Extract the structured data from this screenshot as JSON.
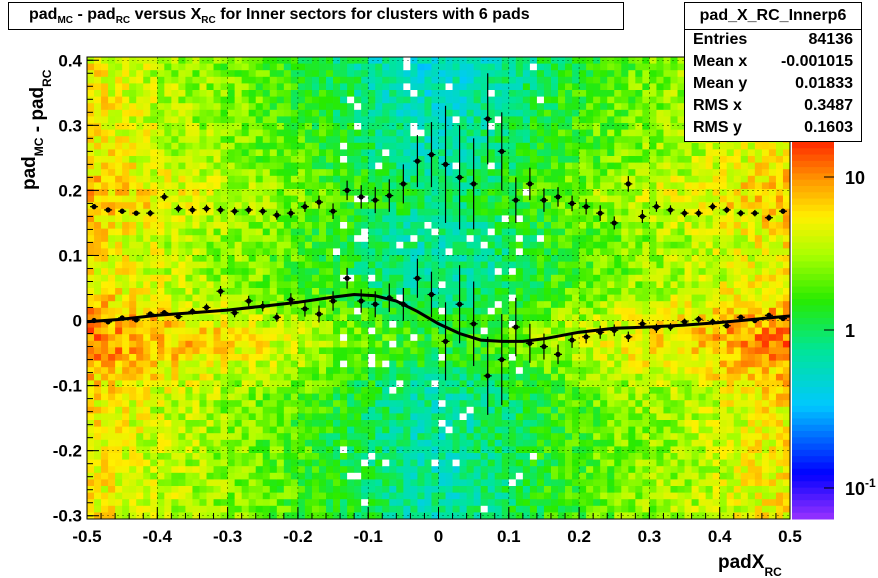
{
  "chart_data": {
    "type": "heatmap",
    "title": "pad_MC - pad_RC versus X_RC for Inner sectors for clusters with 6 pads",
    "title_parts": [
      {
        "t": "pad",
        "sub": "MC"
      },
      {
        "t": " - pad",
        "sub": "RC"
      },
      {
        "t": " versus X",
        "sub": "RC"
      },
      {
        "t": " for Inner sectors for clusters with 6 pads",
        "sub": ""
      }
    ],
    "xlabel": "padX",
    "xlabel_sub": "RC",
    "ylabel_parts": [
      {
        "t": "pad",
        "sub": "MC"
      },
      {
        "t": " - pad",
        "sub": "RC"
      }
    ],
    "xlim": [
      -0.5,
      0.5
    ],
    "ylim": [
      -0.305,
      0.405
    ],
    "x_ticks": [
      "-0.5",
      "-0.4",
      "-0.3",
      "-0.2",
      "-0.1",
      "0",
      "0.1",
      "0.2",
      "0.3",
      "0.4",
      "0.5"
    ],
    "y_ticks": [
      "-0.3",
      "-0.2",
      "-0.1",
      "0",
      "0.1",
      "0.2",
      "0.3",
      "0.4"
    ],
    "grid": true,
    "z_scale": "log",
    "z_ticks": [
      "10",
      "1",
      "10^-1"
    ],
    "stats": {
      "name": "pad_X_RC_Innerp6",
      "rows": [
        {
          "key": "Entries",
          "value": "84136"
        },
        {
          "key": "Mean x",
          "value": "-0.001015"
        },
        {
          "key": "Mean y",
          "value": "0.01833"
        },
        {
          "key": "RMS x",
          "value": "0.3487"
        },
        {
          "key": "RMS y",
          "value": "0.1603"
        }
      ]
    },
    "profile_points": {
      "x": [
        -0.49,
        -0.47,
        -0.45,
        -0.43,
        -0.41,
        -0.39,
        -0.37,
        -0.35,
        -0.33,
        -0.31,
        -0.29,
        -0.27,
        -0.25,
        -0.23,
        -0.21,
        -0.19,
        -0.17,
        -0.15,
        -0.13,
        -0.11,
        -0.09,
        -0.07,
        -0.05,
        -0.03,
        -0.01,
        0.01,
        0.03,
        0.05,
        0.07,
        0.09,
        0.11,
        0.13,
        0.15,
        0.17,
        0.19,
        0.21,
        0.23,
        0.25,
        0.27,
        0.29,
        0.31,
        0.33,
        0.35,
        0.37,
        0.39,
        0.41,
        0.43,
        0.45,
        0.47,
        0.49
      ],
      "y": [
        0.0,
        -0.002,
        0.004,
        0.001,
        0.01,
        0.012,
        0.006,
        0.014,
        0.02,
        0.045,
        0.012,
        0.03,
        0.022,
        0.005,
        0.032,
        0.018,
        0.01,
        0.03,
        0.065,
        0.03,
        0.025,
        0.035,
        0.025,
        0.065,
        0.04,
        -0.032,
        0.025,
        -0.005,
        -0.085,
        -0.06,
        -0.01,
        -0.035,
        -0.04,
        -0.052,
        -0.03,
        -0.025,
        -0.018,
        -0.015,
        -0.025,
        -0.005,
        -0.012,
        -0.01,
        -0.002,
        0.002,
        -0.002,
        -0.008,
        0.005,
        0.0,
        0.008,
        0.003
      ],
      "err": [
        0.003,
        0.004,
        0.004,
        0.004,
        0.004,
        0.004,
        0.004,
        0.005,
        0.006,
        0.008,
        0.007,
        0.008,
        0.008,
        0.007,
        0.01,
        0.012,
        0.013,
        0.015,
        0.016,
        0.018,
        0.02,
        0.022,
        0.025,
        0.03,
        0.035,
        0.06,
        0.06,
        0.065,
        0.06,
        0.07,
        0.045,
        0.03,
        0.02,
        0.015,
        0.012,
        0.01,
        0.01,
        0.009,
        0.008,
        0.007,
        0.007,
        0.006,
        0.005,
        0.005,
        0.005,
        0.004,
        0.004,
        0.004,
        0.004,
        0.003
      ]
    },
    "upper_points": {
      "x": [
        -0.49,
        -0.47,
        -0.45,
        -0.43,
        -0.41,
        -0.39,
        -0.37,
        -0.35,
        -0.33,
        -0.31,
        -0.29,
        -0.27,
        -0.25,
        -0.23,
        -0.21,
        -0.19,
        -0.17,
        -0.15,
        -0.13,
        -0.11,
        -0.09,
        -0.07,
        -0.05,
        -0.03,
        -0.01,
        0.01,
        0.03,
        0.05,
        0.07,
        0.09,
        0.11,
        0.13,
        0.15,
        0.17,
        0.19,
        0.21,
        0.23,
        0.25,
        0.27,
        0.29,
        0.31,
        0.33,
        0.35,
        0.37,
        0.39,
        0.41,
        0.43,
        0.45,
        0.47,
        0.49
      ],
      "y": [
        0.175,
        0.17,
        0.168,
        0.165,
        0.165,
        0.19,
        0.172,
        0.17,
        0.172,
        0.17,
        0.168,
        0.17,
        0.168,
        0.162,
        0.165,
        0.175,
        0.182,
        0.168,
        0.2,
        0.19,
        0.185,
        0.192,
        0.21,
        0.245,
        0.255,
        0.24,
        0.22,
        0.21,
        0.31,
        0.26,
        0.185,
        0.21,
        0.185,
        0.19,
        0.18,
        0.175,
        0.165,
        0.15,
        0.21,
        0.16,
        0.175,
        0.17,
        0.165,
        0.165,
        0.175,
        0.17,
        0.165,
        0.165,
        0.158,
        0.168
      ],
      "err": [
        0.004,
        0.004,
        0.004,
        0.004,
        0.005,
        0.006,
        0.006,
        0.006,
        0.006,
        0.006,
        0.006,
        0.006,
        0.006,
        0.007,
        0.007,
        0.008,
        0.01,
        0.012,
        0.015,
        0.018,
        0.02,
        0.025,
        0.03,
        0.04,
        0.05,
        0.09,
        0.08,
        0.07,
        0.07,
        0.06,
        0.035,
        0.025,
        0.018,
        0.015,
        0.012,
        0.012,
        0.012,
        0.01,
        0.012,
        0.01,
        0.008,
        0.007,
        0.006,
        0.006,
        0.006,
        0.005,
        0.005,
        0.005,
        0.005,
        0.004
      ]
    },
    "fit_curve": {
      "x": [
        -0.5,
        -0.45,
        -0.4,
        -0.35,
        -0.3,
        -0.25,
        -0.2,
        -0.15,
        -0.12,
        -0.09,
        -0.06,
        -0.03,
        0.0,
        0.03,
        0.06,
        0.09,
        0.12,
        0.15,
        0.2,
        0.25,
        0.3,
        0.35,
        0.4,
        0.45,
        0.5
      ],
      "y": [
        -0.002,
        0.002,
        0.008,
        0.012,
        0.016,
        0.022,
        0.028,
        0.036,
        0.04,
        0.038,
        0.03,
        0.014,
        -0.005,
        -0.02,
        -0.03,
        -0.032,
        -0.032,
        -0.028,
        -0.018,
        -0.012,
        -0.01,
        -0.007,
        -0.003,
        0.002,
        0.007
      ]
    }
  }
}
